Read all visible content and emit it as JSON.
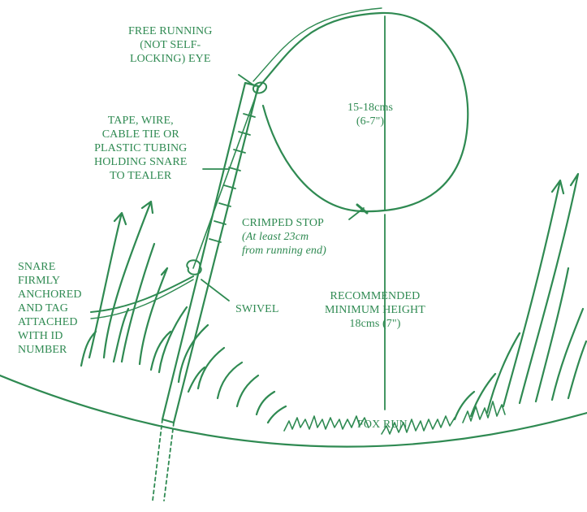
{
  "colors": {
    "ink": "#2f8a52",
    "ink_light": "#5aa678",
    "background": "#ffffff"
  },
  "labels": {
    "free_running_eye": [
      "FREE RUNNING",
      "(NOT SELF-",
      "LOCKING) EYE"
    ],
    "holding": [
      "TAPE, WIRE,",
      "CABLE TIE OR",
      "PLASTIC TUBING",
      "HOLDING SNARE",
      "TO TEALER"
    ],
    "loop_size": [
      "15-18cms",
      "(6-7\")"
    ],
    "crimped_stop": "CRIMPED STOP",
    "crimped_note": [
      "(At least 23cm",
      "from running end)"
    ],
    "anchored": [
      "SNARE",
      "FIRMLY",
      "ANCHORED",
      "AND TAG",
      "ATTACHED",
      "WITH ID",
      "NUMBER"
    ],
    "swivel": "SWIVEL",
    "height": [
      "RECOMMENDED",
      "MINIMUM HEIGHT",
      "18cms (7\")"
    ],
    "fox_run": "FOX RUN"
  }
}
